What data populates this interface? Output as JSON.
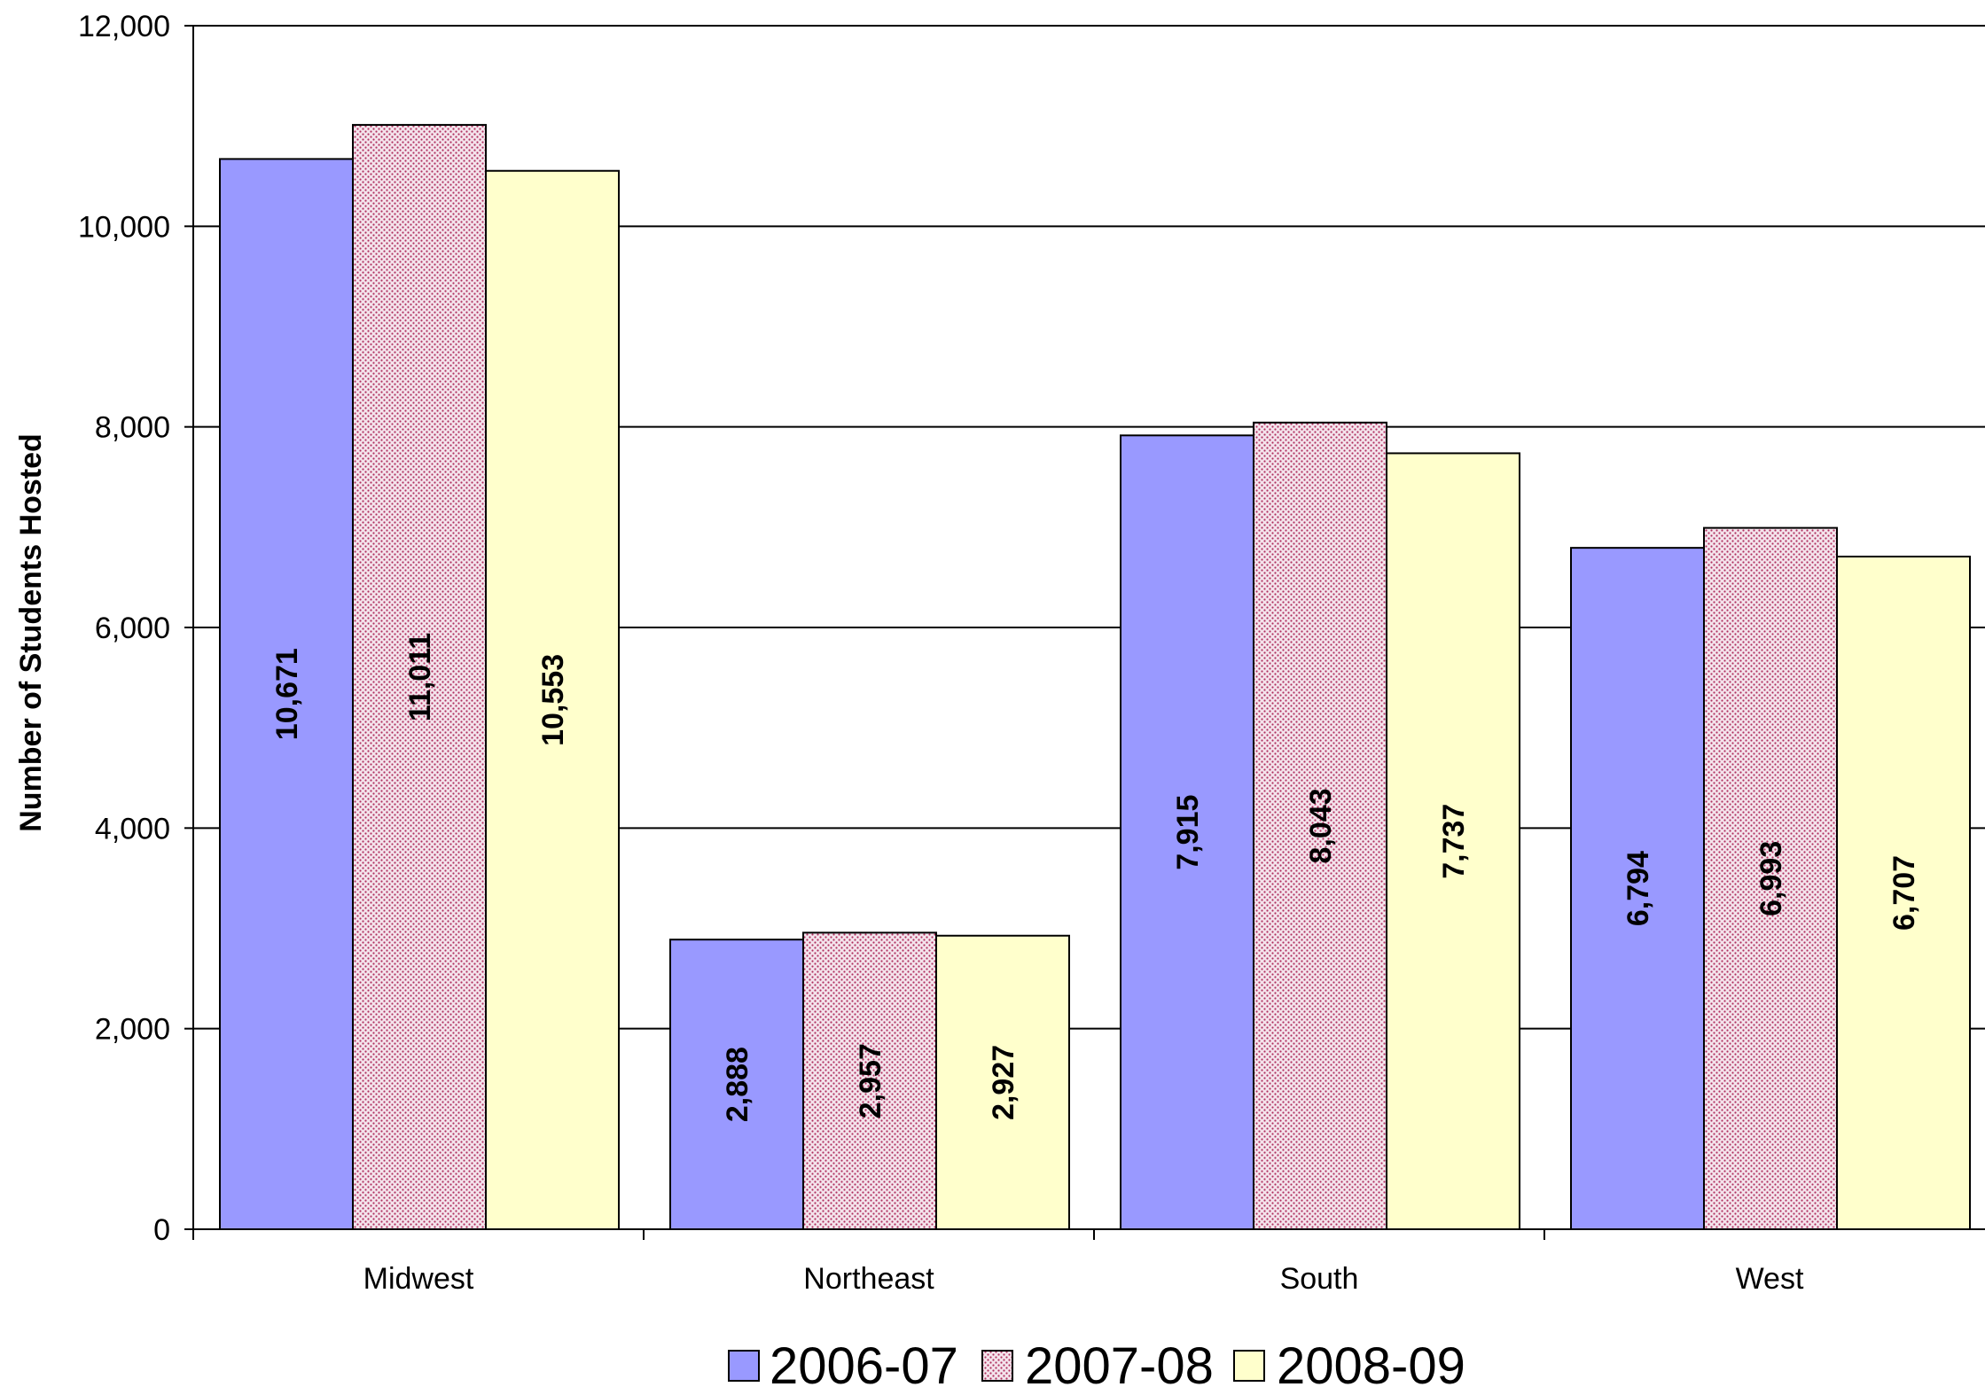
{
  "chart_data": {
    "type": "bar",
    "title": "",
    "xlabel": "",
    "ylabel": "Number of Students Hosted",
    "ylim": [
      0,
      12000
    ],
    "yticks": [
      0,
      2000,
      4000,
      6000,
      8000,
      10000,
      12000
    ],
    "ytick_labels": [
      "0",
      "2,000",
      "4,000",
      "6,000",
      "8,000",
      "10,000",
      "12,000"
    ],
    "grid": true,
    "legend_position": "bottom-center",
    "categories": [
      "Midwest",
      "Northeast",
      "South",
      "West"
    ],
    "series": [
      {
        "name": "2006-07",
        "values": [
          10671,
          2888,
          7915,
          6794
        ],
        "labels": [
          "10,671",
          "2,888",
          "7,915",
          "6,794"
        ],
        "color": "#9999ff",
        "pattern": "solid"
      },
      {
        "name": "2007-08",
        "values": [
          11011,
          2957,
          8043,
          6993
        ],
        "labels": [
          "11,011",
          "2,957",
          "8,043",
          "6,993"
        ],
        "color": "#f4e4ec",
        "pattern": "dotted"
      },
      {
        "name": "2008-09",
        "values": [
          10553,
          2927,
          7737,
          6707
        ],
        "labels": [
          "10,553",
          "2,927",
          "7,737",
          "6,707"
        ],
        "color": "#ffffcc",
        "pattern": "solid"
      }
    ]
  }
}
